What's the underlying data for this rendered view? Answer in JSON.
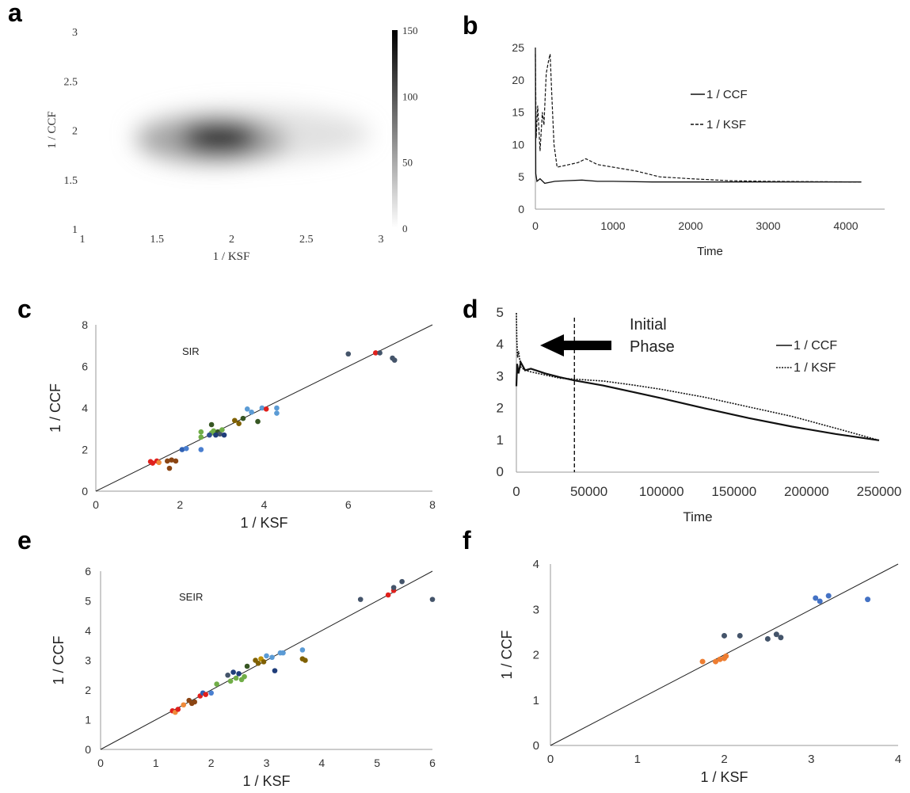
{
  "panel_letters": [
    "a",
    "b",
    "c",
    "d",
    "e",
    "f"
  ],
  "chart_data": [
    {
      "panel": "a",
      "type": "heatmap",
      "xlabel": "1 / KSF",
      "ylabel": "1 / CCF",
      "xlim": [
        1,
        3
      ],
      "ylim": [
        1,
        3
      ],
      "xticks": [
        "1",
        "1.5",
        "2",
        "2.5",
        "3"
      ],
      "yticks": [
        "1",
        "1.5",
        "2",
        "2.5",
        "3"
      ],
      "colorbar": {
        "min": 0,
        "max": 150,
        "ticks": [
          "0",
          "50",
          "100",
          "150"
        ]
      },
      "peak": {
        "x": 1.92,
        "y": 1.93,
        "value": 150
      },
      "colormap": "white-to-black"
    },
    {
      "panel": "b",
      "type": "line",
      "xlabel": "Time",
      "ylabel": "",
      "xlim": [
        0,
        4500
      ],
      "ylim": [
        0,
        25
      ],
      "xticks": [
        "0",
        "1000",
        "2000",
        "3000",
        "4000"
      ],
      "yticks": [
        "0",
        "5",
        "10",
        "15",
        "20",
        "25"
      ],
      "legend_position": "right",
      "series": [
        {
          "name": "1 / CCF",
          "style": "solid",
          "x": [
            0,
            5,
            20,
            60,
            120,
            250,
            400,
            600,
            800,
            1000,
            1500,
            2000,
            3000,
            4200
          ],
          "y": [
            25,
            5.5,
            4.3,
            4.7,
            4.0,
            4.3,
            4.4,
            4.5,
            4.3,
            4.3,
            4.2,
            4.2,
            4.2,
            4.2
          ]
        },
        {
          "name": "1 / KSF",
          "style": "dashed",
          "x": [
            0,
            10,
            30,
            60,
            90,
            110,
            140,
            170,
            190,
            210,
            240,
            280,
            400,
            550,
            650,
            800,
            1000,
            1300,
            1600,
            2000,
            2500,
            3000,
            4200
          ],
          "y": [
            24,
            11,
            16,
            9,
            15,
            13,
            21,
            23,
            24,
            18,
            10,
            6.5,
            6.8,
            7.2,
            7.8,
            6.9,
            6.5,
            5.9,
            5.0,
            4.7,
            4.4,
            4.3,
            4.2
          ]
        }
      ]
    },
    {
      "panel": "c",
      "type": "scatter",
      "annotation": "SIR",
      "xlabel": "1 / KSF",
      "ylabel": "1 / CCF",
      "xlim": [
        0,
        8
      ],
      "ylim": [
        0,
        8
      ],
      "xticks": [
        "0",
        "2",
        "4",
        "6",
        "8"
      ],
      "yticks": [
        "0",
        "2",
        "4",
        "6",
        "8"
      ],
      "identity_line": true,
      "points": [
        {
          "x": 1.35,
          "y": 1.35,
          "c": "#e0201c"
        },
        {
          "x": 1.45,
          "y": 1.45,
          "c": "#e0201c"
        },
        {
          "x": 1.5,
          "y": 1.38,
          "c": "#f08a3a"
        },
        {
          "x": 1.3,
          "y": 1.42,
          "c": "#e0201c"
        },
        {
          "x": 1.7,
          "y": 1.45,
          "c": "#8b4513"
        },
        {
          "x": 1.8,
          "y": 1.5,
          "c": "#8b4513"
        },
        {
          "x": 1.9,
          "y": 1.45,
          "c": "#8b4513"
        },
        {
          "x": 1.75,
          "y": 1.1,
          "c": "#8b4513"
        },
        {
          "x": 2.05,
          "y": 2.0,
          "c": "#2f60b4"
        },
        {
          "x": 2.15,
          "y": 2.05,
          "c": "#4a7fd0"
        },
        {
          "x": 2.5,
          "y": 2.85,
          "c": "#70ad47"
        },
        {
          "x": 2.5,
          "y": 2.6,
          "c": "#70ad47"
        },
        {
          "x": 2.75,
          "y": 2.8,
          "c": "#70ad47"
        },
        {
          "x": 2.8,
          "y": 2.9,
          "c": "#70ad47"
        },
        {
          "x": 2.7,
          "y": 2.7,
          "c": "#2f4f8f"
        },
        {
          "x": 2.9,
          "y": 2.85,
          "c": "#375623"
        },
        {
          "x": 2.95,
          "y": 2.75,
          "c": "#44546a"
        },
        {
          "x": 3.0,
          "y": 2.95,
          "c": "#70ad47"
        },
        {
          "x": 3.05,
          "y": 2.7,
          "c": "#1f3d7a"
        },
        {
          "x": 2.85,
          "y": 2.7,
          "c": "#1f3d7a"
        },
        {
          "x": 2.75,
          "y": 3.2,
          "c": "#375623"
        },
        {
          "x": 2.5,
          "y": 2.0,
          "c": "#4a7fd0"
        },
        {
          "x": 3.3,
          "y": 3.4,
          "c": "#7f6000"
        },
        {
          "x": 3.4,
          "y": 3.25,
          "c": "#7f6000"
        },
        {
          "x": 3.5,
          "y": 3.5,
          "c": "#375623"
        },
        {
          "x": 3.6,
          "y": 3.95,
          "c": "#5b9bd5"
        },
        {
          "x": 3.7,
          "y": 3.8,
          "c": "#5b9bd5"
        },
        {
          "x": 3.85,
          "y": 3.35,
          "c": "#375623"
        },
        {
          "x": 3.95,
          "y": 4.0,
          "c": "#5b9bd5"
        },
        {
          "x": 4.05,
          "y": 3.95,
          "c": "#e0201c"
        },
        {
          "x": 4.3,
          "y": 4.0,
          "c": "#5b9bd5"
        },
        {
          "x": 4.3,
          "y": 3.75,
          "c": "#5b9bd5"
        },
        {
          "x": 6.0,
          "y": 6.6,
          "c": "#44546a"
        },
        {
          "x": 6.65,
          "y": 6.65,
          "c": "#e0201c"
        },
        {
          "x": 6.75,
          "y": 6.65,
          "c": "#44546a"
        },
        {
          "x": 7.05,
          "y": 6.4,
          "c": "#44546a"
        },
        {
          "x": 7.1,
          "y": 6.3,
          "c": "#44546a"
        }
      ]
    },
    {
      "panel": "d",
      "type": "line",
      "xlabel": "Time",
      "ylabel": "",
      "xlim": [
        0,
        250000
      ],
      "ylim": [
        0,
        5
      ],
      "xticks": [
        "0",
        "50000",
        "100000",
        "150000",
        "200000",
        "250000"
      ],
      "yticks": [
        "0",
        "1",
        "2",
        "3",
        "4",
        "5"
      ],
      "legend_position": "right",
      "annotation": "Initial\nPhase",
      "vline_x": 40000,
      "series": [
        {
          "name": "1 / CCF",
          "style": "solid",
          "x": [
            0,
            500,
            1500,
            3000,
            6000,
            10000,
            20000,
            30000,
            40000,
            60000,
            80000,
            100000,
            130000,
            160000,
            190000,
            220000,
            250000
          ],
          "y": [
            2.7,
            3.4,
            3.1,
            3.45,
            3.2,
            3.25,
            3.1,
            2.98,
            2.88,
            2.72,
            2.52,
            2.32,
            2.0,
            1.7,
            1.43,
            1.2,
            1.0
          ]
        },
        {
          "name": "1 / KSF",
          "style": "dotted",
          "x": [
            0,
            300,
            800,
            1500,
            3000,
            6000,
            10000,
            20000,
            30000,
            40000,
            60000,
            80000,
            100000,
            130000,
            160000,
            190000,
            220000,
            250000
          ],
          "y": [
            5.0,
            4.2,
            3.6,
            3.8,
            3.3,
            3.2,
            3.15,
            3.05,
            2.95,
            2.92,
            2.86,
            2.74,
            2.6,
            2.35,
            2.05,
            1.75,
            1.38,
            1.0
          ]
        }
      ]
    },
    {
      "panel": "e",
      "type": "scatter",
      "annotation": "SEIR",
      "xlabel": "1 / KSF",
      "ylabel": "1 / CCF",
      "xlim": [
        0,
        6
      ],
      "ylim": [
        0,
        6
      ],
      "xticks": [
        "0",
        "1",
        "2",
        "3",
        "4",
        "5",
        "6"
      ],
      "yticks": [
        "0",
        "1",
        "2",
        "3",
        "4",
        "5",
        "6"
      ],
      "identity_line": true,
      "points": [
        {
          "x": 1.3,
          "y": 1.3,
          "c": "#e0201c"
        },
        {
          "x": 1.35,
          "y": 1.25,
          "c": "#f08a3a"
        },
        {
          "x": 1.4,
          "y": 1.35,
          "c": "#e0201c"
        },
        {
          "x": 1.5,
          "y": 1.5,
          "c": "#f08a3a"
        },
        {
          "x": 1.6,
          "y": 1.65,
          "c": "#8b4513"
        },
        {
          "x": 1.65,
          "y": 1.55,
          "c": "#8b4513"
        },
        {
          "x": 1.7,
          "y": 1.6,
          "c": "#8b4513"
        },
        {
          "x": 1.8,
          "y": 1.8,
          "c": "#e0201c"
        },
        {
          "x": 1.85,
          "y": 1.9,
          "c": "#2f60b4"
        },
        {
          "x": 1.9,
          "y": 1.85,
          "c": "#e0201c"
        },
        {
          "x": 2.0,
          "y": 1.9,
          "c": "#4a7fd0"
        },
        {
          "x": 2.1,
          "y": 2.2,
          "c": "#70ad47"
        },
        {
          "x": 2.3,
          "y": 2.5,
          "c": "#44546a"
        },
        {
          "x": 2.35,
          "y": 2.3,
          "c": "#70ad47"
        },
        {
          "x": 2.4,
          "y": 2.6,
          "c": "#1f3d7a"
        },
        {
          "x": 2.45,
          "y": 2.4,
          "c": "#70ad47"
        },
        {
          "x": 2.5,
          "y": 2.55,
          "c": "#1f3d7a"
        },
        {
          "x": 2.55,
          "y": 2.35,
          "c": "#70ad47"
        },
        {
          "x": 2.6,
          "y": 2.45,
          "c": "#70ad47"
        },
        {
          "x": 2.65,
          "y": 2.8,
          "c": "#375623"
        },
        {
          "x": 2.8,
          "y": 3.0,
          "c": "#7f6000"
        },
        {
          "x": 2.85,
          "y": 2.9,
          "c": "#7f6000"
        },
        {
          "x": 2.9,
          "y": 3.05,
          "c": "#bf9000"
        },
        {
          "x": 2.95,
          "y": 2.95,
          "c": "#7f6000"
        },
        {
          "x": 3.0,
          "y": 3.15,
          "c": "#5b9bd5"
        },
        {
          "x": 3.1,
          "y": 3.1,
          "c": "#5b9bd5"
        },
        {
          "x": 3.15,
          "y": 2.65,
          "c": "#1f3d7a"
        },
        {
          "x": 3.25,
          "y": 3.25,
          "c": "#5b9bd5"
        },
        {
          "x": 3.3,
          "y": 3.25,
          "c": "#5b9bd5"
        },
        {
          "x": 3.65,
          "y": 3.35,
          "c": "#5b9bd5"
        },
        {
          "x": 3.65,
          "y": 3.05,
          "c": "#7f6000"
        },
        {
          "x": 3.7,
          "y": 3.0,
          "c": "#7f6000"
        },
        {
          "x": 4.7,
          "y": 5.05,
          "c": "#44546a"
        },
        {
          "x": 5.2,
          "y": 5.2,
          "c": "#e0201c"
        },
        {
          "x": 5.3,
          "y": 5.35,
          "c": "#e0201c"
        },
        {
          "x": 5.3,
          "y": 5.45,
          "c": "#44546a"
        },
        {
          "x": 5.45,
          "y": 5.65,
          "c": "#44546a"
        },
        {
          "x": 6.0,
          "y": 5.05,
          "c": "#44546a"
        }
      ]
    },
    {
      "panel": "f",
      "type": "scatter",
      "xlabel": "1 / KSF",
      "ylabel": "1 / CCF",
      "xlim": [
        0,
        4
      ],
      "ylim": [
        0,
        4
      ],
      "xticks": [
        "0",
        "1",
        "2",
        "3",
        "4"
      ],
      "yticks": [
        "0",
        "1",
        "2",
        "3",
        "4"
      ],
      "identity_line": true,
      "points": [
        {
          "x": 1.75,
          "y": 1.85,
          "c": "#ed7d31"
        },
        {
          "x": 1.9,
          "y": 1.85,
          "c": "#ed7d31"
        },
        {
          "x": 1.95,
          "y": 1.9,
          "c": "#ed7d31"
        },
        {
          "x": 2.0,
          "y": 1.92,
          "c": "#ed7d31"
        },
        {
          "x": 2.02,
          "y": 1.97,
          "c": "#ed7d31"
        },
        {
          "x": 2.0,
          "y": 2.42,
          "c": "#44546a"
        },
        {
          "x": 2.18,
          "y": 2.42,
          "c": "#44546a"
        },
        {
          "x": 2.5,
          "y": 2.35,
          "c": "#44546a"
        },
        {
          "x": 2.6,
          "y": 2.45,
          "c": "#44546a"
        },
        {
          "x": 2.65,
          "y": 2.38,
          "c": "#44546a"
        },
        {
          "x": 3.05,
          "y": 3.25,
          "c": "#4472c4"
        },
        {
          "x": 3.1,
          "y": 3.18,
          "c": "#4472c4"
        },
        {
          "x": 3.2,
          "y": 3.3,
          "c": "#4472c4"
        },
        {
          "x": 3.65,
          "y": 3.22,
          "c": "#4472c4"
        }
      ]
    }
  ]
}
